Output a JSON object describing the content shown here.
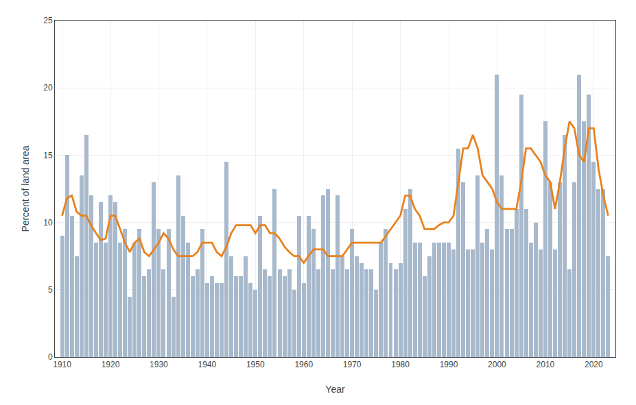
{
  "chart_data": {
    "type": "bar",
    "xlabel": "Year",
    "ylabel": "Percent of land area",
    "x": [
      1910,
      1911,
      1912,
      1913,
      1914,
      1915,
      1916,
      1917,
      1918,
      1919,
      1920,
      1921,
      1922,
      1923,
      1924,
      1925,
      1926,
      1927,
      1928,
      1929,
      1930,
      1931,
      1932,
      1933,
      1934,
      1935,
      1936,
      1937,
      1938,
      1939,
      1940,
      1941,
      1942,
      1943,
      1944,
      1945,
      1946,
      1947,
      1948,
      1949,
      1950,
      1951,
      1952,
      1953,
      1954,
      1955,
      1956,
      1957,
      1958,
      1959,
      1960,
      1961,
      1962,
      1963,
      1964,
      1965,
      1966,
      1967,
      1968,
      1969,
      1970,
      1971,
      1972,
      1973,
      1974,
      1975,
      1976,
      1977,
      1978,
      1979,
      1980,
      1981,
      1982,
      1983,
      1984,
      1985,
      1986,
      1987,
      1988,
      1989,
      1990,
      1991,
      1992,
      1993,
      1994,
      1995,
      1996,
      1997,
      1998,
      1999,
      2000,
      2001,
      2002,
      2003,
      2004,
      2005,
      2006,
      2007,
      2008,
      2009,
      2010,
      2011,
      2012,
      2013,
      2014,
      2015,
      2016,
      2017,
      2018,
      2019,
      2020,
      2021,
      2022,
      2023
    ],
    "series": [
      {
        "type": "bar",
        "color": "#a8b9cc",
        "values": [
          9.0,
          15.0,
          10.5,
          7.5,
          13.5,
          16.5,
          12.0,
          8.5,
          11.5,
          8.5,
          12.0,
          11.5,
          8.5,
          9.5,
          4.5,
          8.5,
          9.5,
          6.0,
          6.5,
          13.0,
          9.5,
          6.5,
          9.5,
          4.5,
          13.5,
          10.5,
          8.5,
          6.0,
          6.5,
          9.5,
          5.5,
          6.0,
          5.5,
          5.5,
          14.5,
          7.5,
          6.0,
          6.0,
          7.5,
          5.5,
          5.0,
          10.5,
          6.5,
          6.0,
          12.5,
          6.5,
          6.0,
          6.5,
          5.0,
          10.5,
          5.5,
          10.5,
          9.5,
          6.5,
          12.0,
          12.5,
          6.5,
          12.0,
          7.5,
          6.5,
          9.5,
          7.5,
          7.0,
          6.5,
          6.5,
          5.0,
          8.5,
          9.5,
          7.0,
          6.5,
          7.0,
          11.0,
          12.5,
          8.5,
          8.5,
          6.0,
          7.5,
          8.5,
          8.5,
          8.5,
          8.5,
          8.0,
          15.5,
          13.0,
          8.0,
          8.0,
          13.5,
          8.5,
          9.5,
          8.0,
          21.0,
          13.5,
          9.5,
          9.5,
          11.0,
          19.5,
          11.0,
          8.5,
          10.0,
          8.0,
          17.5,
          13.0,
          8.0,
          13.0,
          16.5,
          6.5,
          13.0,
          21.0,
          17.5,
          19.5,
          14.5,
          12.5,
          12.5,
          7.5
        ]
      },
      {
        "type": "line",
        "color": "#e8821e",
        "values": [
          10.5,
          11.8,
          12.0,
          10.8,
          10.5,
          10.5,
          9.8,
          9.2,
          8.7,
          8.8,
          10.5,
          10.5,
          9.5,
          8.5,
          7.8,
          8.5,
          8.8,
          7.8,
          7.5,
          8.0,
          8.5,
          9.2,
          8.8,
          8.0,
          7.5,
          7.5,
          7.5,
          7.5,
          7.8,
          8.5,
          8.5,
          8.5,
          7.8,
          7.5,
          8.2,
          9.2,
          9.8,
          9.8,
          9.8,
          9.8,
          9.2,
          9.8,
          9.8,
          9.2,
          9.2,
          8.8,
          8.2,
          7.8,
          7.5,
          7.5,
          7.0,
          7.5,
          8.0,
          8.0,
          8.0,
          7.5,
          7.5,
          7.5,
          7.5,
          8.0,
          8.5,
          8.5,
          8.5,
          8.5,
          8.5,
          8.5,
          8.5,
          9.0,
          9.5,
          10.0,
          10.5,
          12.0,
          12.0,
          11.0,
          10.5,
          9.5,
          9.5,
          9.5,
          9.8,
          10.0,
          10.0,
          10.5,
          13.0,
          15.5,
          15.5,
          16.5,
          15.5,
          13.5,
          13.0,
          12.5,
          11.5,
          11.0,
          11.0,
          11.0,
          11.0,
          13.0,
          15.5,
          15.5,
          15.0,
          14.5,
          13.5,
          13.0,
          11.0,
          13.0,
          15.5,
          17.5,
          17.0,
          15.0,
          14.5,
          17.0,
          17.0,
          14.0,
          12.0,
          10.5
        ]
      }
    ],
    "xlim": [
      1908.5,
      2024.5
    ],
    "ylim": [
      0,
      25
    ],
    "xticks": [
      1910,
      1920,
      1930,
      1940,
      1950,
      1960,
      1970,
      1980,
      1990,
      2000,
      2010,
      2020
    ],
    "yticks": [
      0,
      5,
      10,
      15,
      20,
      25
    ],
    "grid": true
  }
}
